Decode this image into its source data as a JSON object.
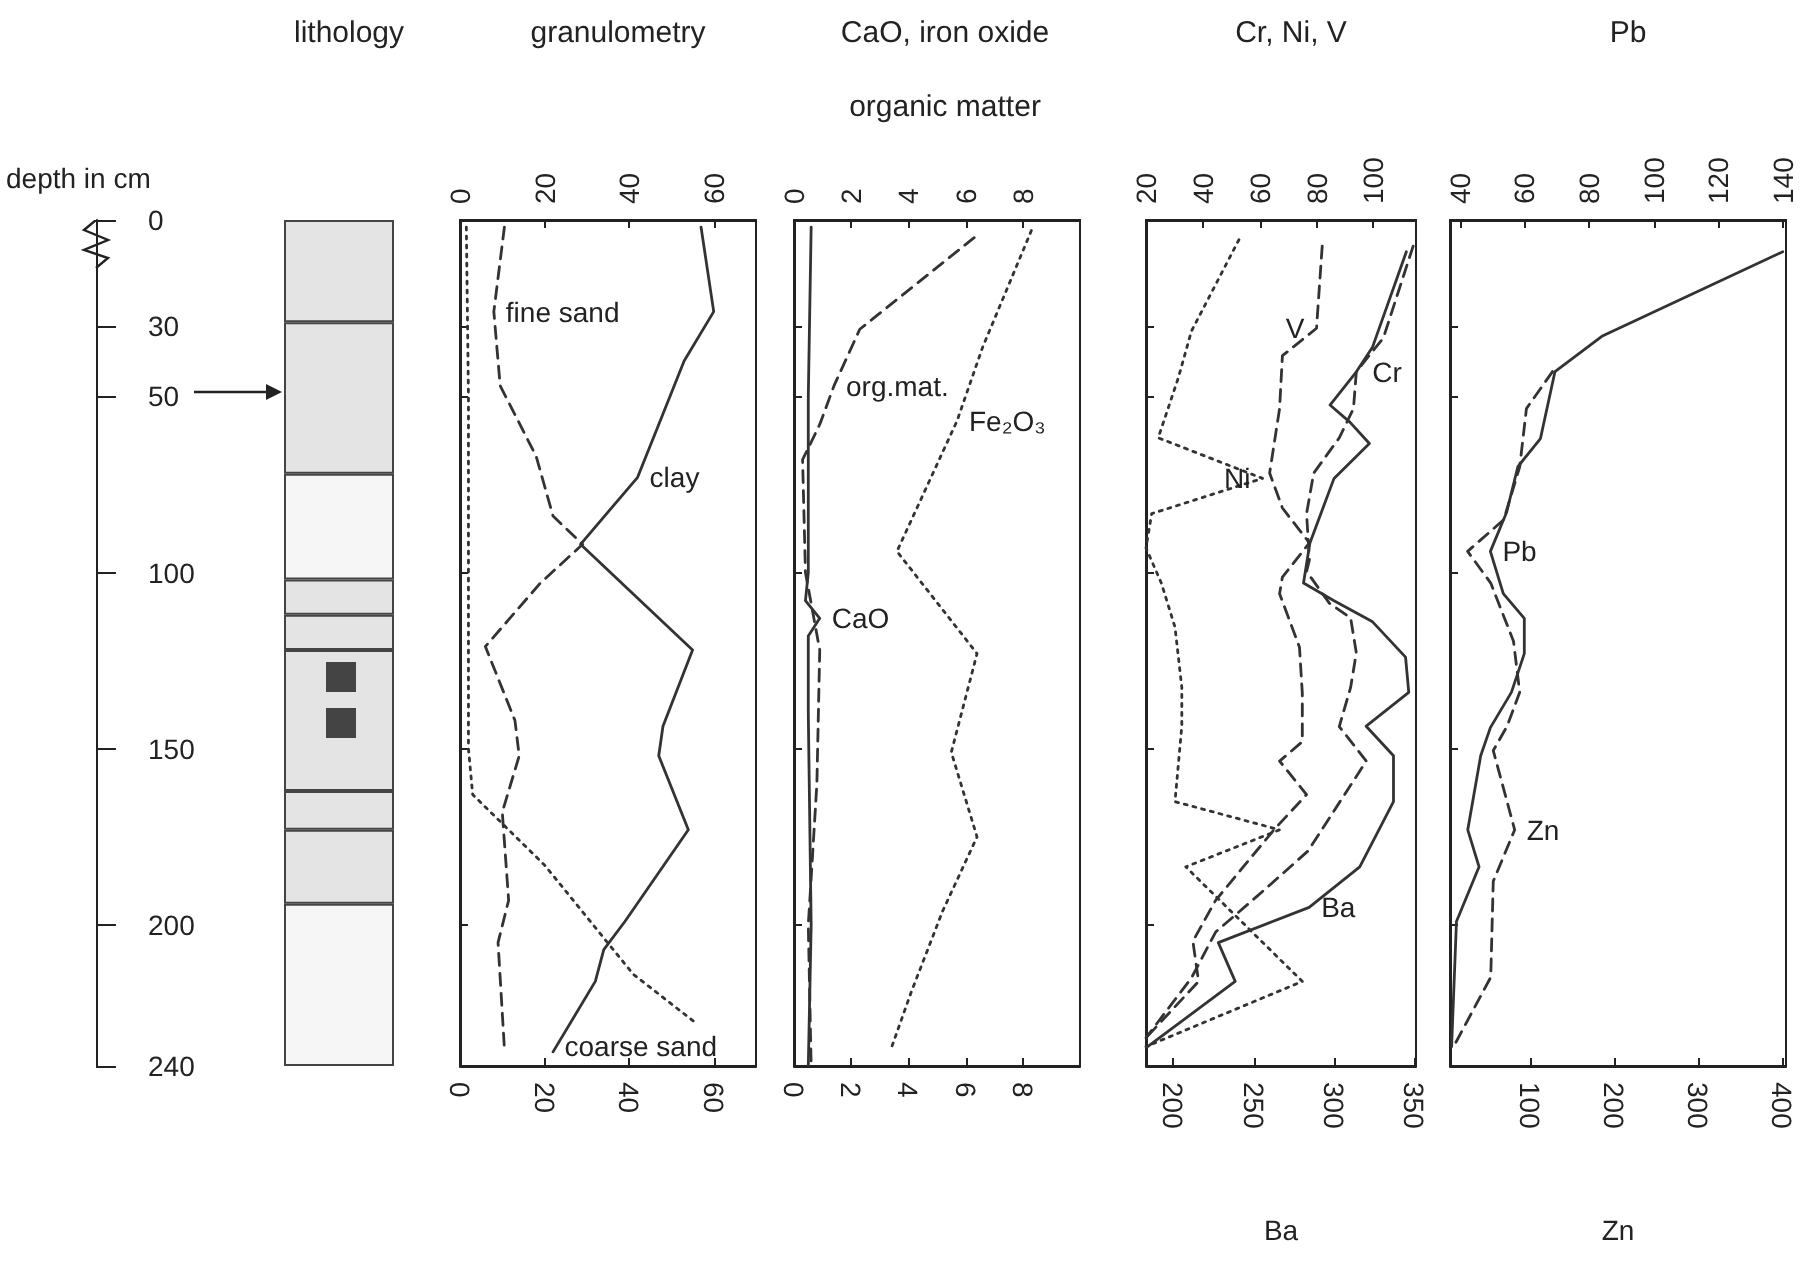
{
  "chart_data": [
    {
      "type": "bar",
      "stacked": true,
      "title": "lithology",
      "ylabel": "depth in cm",
      "categories": [
        null
      ],
      "ylim": [
        240,
        0
      ],
      "yticks": [
        0,
        30,
        50,
        100,
        150,
        200,
        240
      ],
      "tick_labels": "y",
      "series": [
        {
          "color": "#e4e4e4",
          "values": [
            29
          ]
        },
        {
          "color": "#e4e4e4",
          "values": [
            43
          ]
        },
        {
          "color": "#f6f6f6",
          "values": [
            30
          ]
        },
        {
          "color": "#e4e4e4",
          "values": [
            10
          ]
        },
        {
          "color": "#e4e4e4",
          "values": [
            10
          ]
        },
        {
          "color": "#e4e4e4",
          "values": [
            40
          ]
        },
        {
          "color": "#e4e4e4",
          "values": [
            11
          ]
        },
        {
          "color": "#e4e4e4",
          "values": [
            21
          ]
        },
        {
          "color": "#f6f6f6",
          "values": [
            46
          ]
        }
      ]
    },
    {
      "type": "line",
      "title": "granulometry",
      "xlim": [
        0,
        70
      ],
      "xticks": [
        0,
        20,
        40,
        60
      ],
      "x2lim": [
        0,
        70
      ],
      "x2ticks": [
        0,
        20,
        40,
        60
      ],
      "ylim": [
        240,
        0
      ],
      "yticks": [
        0,
        30,
        50,
        100,
        150,
        200,
        240
      ],
      "tick_labels": "x",
      "series": [
        {
          "name": "clay",
          "color": "#333333",
          "line_style": "solid",
          "x": [
            57,
            60,
            53,
            47,
            42,
            28.5,
            55,
            48,
            47,
            54,
            39,
            34,
            32,
            22
          ],
          "values": [
            2,
            26,
            40,
            58,
            73,
            92,
            122,
            143.6,
            152,
            173,
            199,
            207,
            216,
            236
          ]
        },
        {
          "name": "fine sand",
          "color": "#333333",
          "line_style": "dashed",
          "x": [
            10.5,
            8,
            9.5,
            18,
            22,
            29,
            19,
            6,
            13,
            14,
            10,
            11.5,
            9,
            10.5
          ],
          "values": [
            2,
            26,
            47,
            67,
            84,
            92,
            103,
            121,
            142,
            152,
            168,
            193,
            205,
            235
          ]
        },
        {
          "name": "coarse sand",
          "color": "#333333",
          "line_style": "dotted",
          "x": [
            1.5,
            2,
            2,
            2,
            3,
            20,
            41,
            56
          ],
          "values": [
            2,
            50,
            100,
            150,
            163,
            183,
            214,
            228
          ]
        }
      ]
    },
    {
      "type": "line",
      "title": "CaO, iron oxide",
      "subtitle": "organic matter",
      "xlim": [
        0,
        10
      ],
      "xticks": [
        0,
        2,
        4,
        6,
        8
      ],
      "x2lim": [
        0,
        10
      ],
      "x2ticks": [
        0,
        2,
        4,
        6,
        8
      ],
      "ylim": [
        240,
        0
      ],
      "yticks": [
        0,
        30,
        50,
        100,
        150,
        200,
        240
      ],
      "tick_labels": "x",
      "series": [
        {
          "name": "CaO",
          "color": "#333333",
          "line_style": "solid",
          "x": [
            0.6,
            0.5,
            0.5,
            0.4,
            0.9,
            0.5,
            0.5,
            0.6,
            0.5
          ],
          "values": [
            2,
            50,
            100,
            108,
            113,
            118,
            140,
            200,
            240
          ]
        },
        {
          "name": "org.mat.",
          "color": "#333333",
          "line_style": "dashed",
          "x": [
            6.3,
            2.3,
            1.4,
            0.9,
            0.3,
            0.4,
            0.9,
            0.8,
            0.5,
            0.6
          ],
          "values": [
            5,
            31,
            47,
            58,
            68,
            100,
            122,
            160,
            200,
            240
          ]
        },
        {
          "name": "Fe₂O₃",
          "color": "#333333",
          "line_style": "dotted",
          "x": [
            8.3,
            6.6,
            5.7,
            3.6,
            6.4,
            5.5,
            6.4,
            5.2,
            4.1,
            3.4
          ],
          "values": [
            3,
            36,
            57,
            94,
            123,
            151,
            175,
            196,
            219,
            235
          ]
        }
      ]
    },
    {
      "type": "line",
      "title": "Cr, Ni, V",
      "xlabel": "Ba",
      "xlim": [
        183,
        351
      ],
      "xticks": [
        200,
        250,
        300,
        350
      ],
      "x2lim": [
        20,
        115
      ],
      "x2ticks": [
        20,
        40,
        60,
        80,
        100
      ],
      "ylim": [
        240,
        0
      ],
      "yticks": [
        0,
        30,
        50,
        100,
        150,
        200,
        240
      ],
      "tick_labels": "x",
      "series": [
        {
          "name": "Ba",
          "color": "#333333",
          "line_style": "solid",
          "x": [
            345,
            324,
            314,
            297.5,
            310,
            322,
            300,
            285,
            281,
            300,
            324,
            344.5,
            346.5,
            320,
            337,
            337,
            316,
            284.5,
            228,
            238.5,
            184
          ],
          "values": [
            9,
            36,
            43,
            52.5,
            57.4,
            63.4,
            73.3,
            91.6,
            103,
            108,
            114,
            124,
            134,
            143.6,
            152,
            165,
            183.5,
            195,
            205,
            216,
            234.5
          ]
        },
        {
          "name": "Cr",
          "color": "#333333",
          "line_style": "dashed",
          "axis": "x2",
          "x": [
            114,
            103.5,
            94,
            93,
            88,
            79,
            76.5,
            77.5,
            76.5,
            84.5,
            92,
            94,
            92,
            88,
            97.5,
            77,
            61,
            44.5,
            36,
            20
          ],
          "values": [
            7.4,
            33.5,
            43,
            53.5,
            61.8,
            71.8,
            83.3,
            96.4,
            99.7,
            108.7,
            112.9,
            122.8,
            132.6,
            143.7,
            153.5,
            179,
            190.5,
            202,
            215,
            232
          ]
        },
        {
          "name": "V",
          "color": "#333333",
          "line_style": "dashed",
          "axis": "x2",
          "x": [
            82,
            80,
            68,
            67,
            63.5,
            68,
            77.5,
            68,
            67,
            74,
            75,
            75,
            67,
            76.5,
            65,
            44.5,
            36.5,
            38.5,
            20
          ],
          "values": [
            7.4,
            30.7,
            38.5,
            53.5,
            71.8,
            81.7,
            91.6,
            101.3,
            106,
            121.2,
            134.3,
            148,
            153.5,
            163,
            173,
            193,
            204.6,
            216,
            232
          ]
        },
        {
          "name": "Ni",
          "color": "#333333",
          "line_style": "dotted",
          "axis": "x2",
          "x": [
            52.7,
            36,
            31.4,
            24.3,
            61,
            22,
            20,
            25.4,
            30.2,
            32.6,
            32.6,
            30.2,
            67,
            34,
            75,
            20
          ],
          "values": [
            5.6,
            31.5,
            44.7,
            61.8,
            73.3,
            83.3,
            93,
            103,
            115.5,
            132.6,
            143.6,
            165,
            173,
            183.5,
            216,
            234.5
          ]
        }
      ]
    },
    {
      "type": "line",
      "title": "Pb",
      "xlabel": "Zn",
      "xlim": [
        5,
        405
      ],
      "xticks": [
        100,
        200,
        300,
        400
      ],
      "x2lim": [
        37,
        141
      ],
      "x2ticks": [
        40,
        60,
        80,
        100,
        120,
        140
      ],
      "ylim": [
        240,
        0
      ],
      "yticks": [
        0,
        30,
        50,
        100,
        150,
        200,
        240
      ],
      "tick_labels": "x",
      "series": [
        {
          "name": "Pb",
          "color": "#333333",
          "line_style": "solid",
          "axis": "x2",
          "x": [
            140,
            84,
            69.5,
            65,
            58,
            54.5,
            49.5,
            53.5,
            60,
            60,
            56,
            49.5,
            46.5,
            42.5,
            46,
            39,
            37.5
          ],
          "values": [
            9,
            33,
            43,
            62,
            70,
            83,
            94,
            106,
            113,
            123,
            134,
            144,
            152,
            173,
            183.5,
            199,
            234.5
          ]
        },
        {
          "name": "Zn",
          "color": "#333333",
          "line_style": "dashed",
          "x": [
            127,
            96,
            88,
            69,
            26,
            53.5,
            80.6,
            88,
            73,
            56.5,
            82,
            56.5,
            53.5,
            9.3
          ],
          "values": [
            43,
            53.5,
            70,
            85,
            94,
            103,
            119.5,
            134,
            143.6,
            150.5,
            173,
            187.6,
            214.8,
            234.5
          ]
        }
      ]
    }
  ]
}
